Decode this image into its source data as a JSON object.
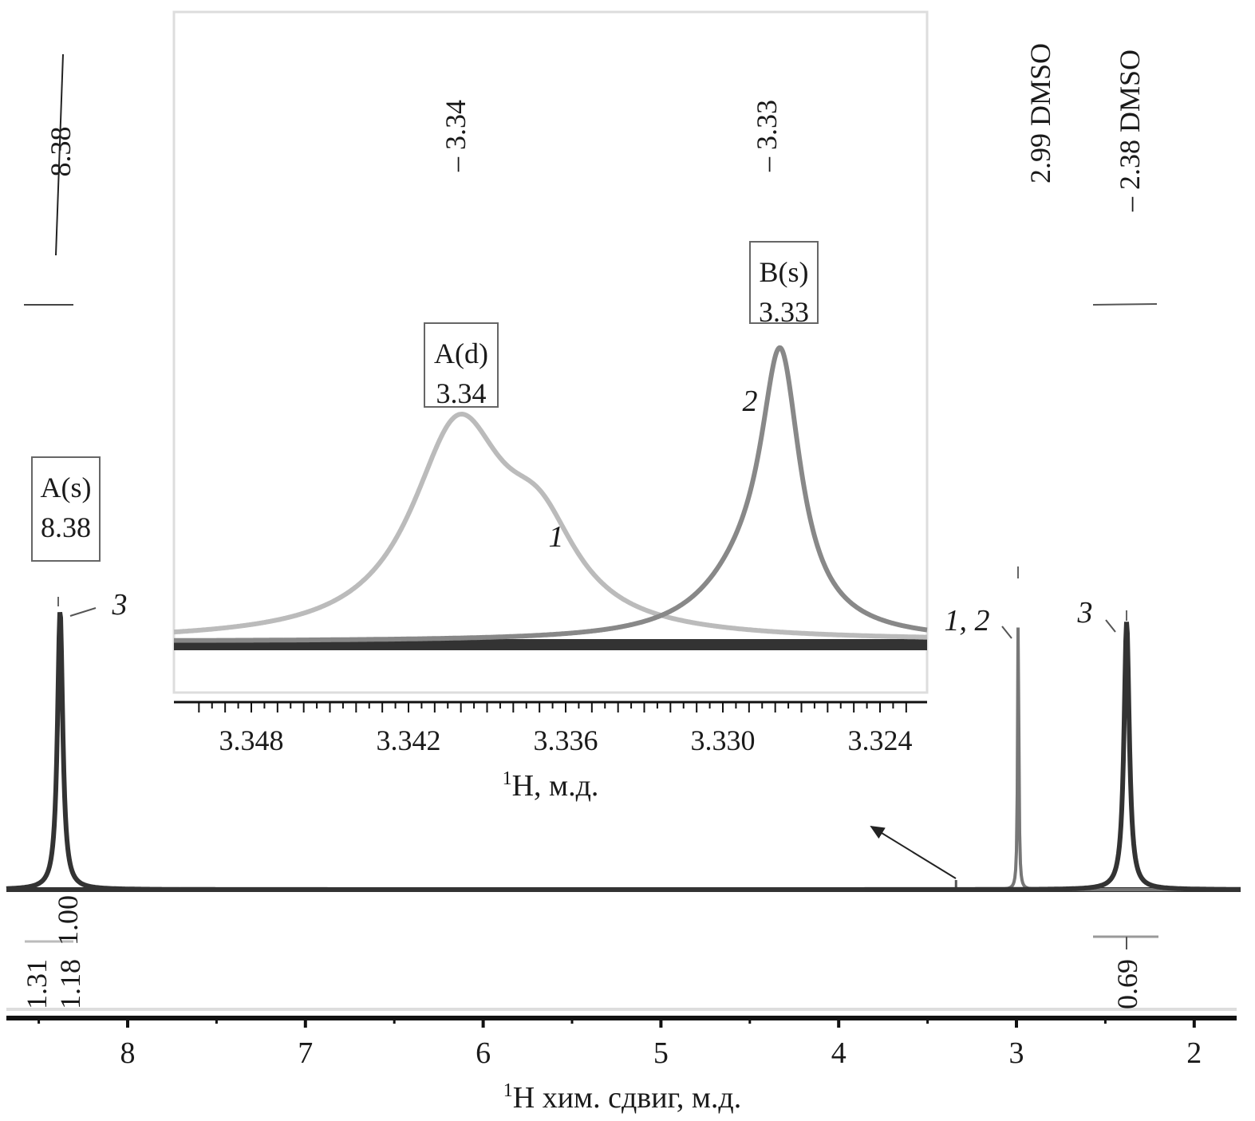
{
  "chart_data": {
    "type": "line",
    "title": "",
    "main": {
      "xlabel_sup": "1",
      "xlabel": "H хим. сдвиг, м.д.",
      "xlim": [
        8.7,
        1.75
      ],
      "xticks": [
        8,
        7,
        6,
        5,
        4,
        3,
        2
      ],
      "peaks": [
        {
          "ppm": 8.38,
          "intensity": 1.0,
          "width": 0.018,
          "color": "#333333"
        },
        {
          "ppm": 3.34,
          "intensity": 0.035,
          "width": 0.004,
          "color": "#555555"
        },
        {
          "ppm": 2.99,
          "intensity": 1.0,
          "width": 0.004,
          "color": "#777777"
        },
        {
          "ppm": 2.38,
          "intensity": 0.96,
          "width": 0.018,
          "color": "#333333"
        }
      ],
      "peak_picks": [
        "8.38",
        "2.99 DMSO",
        "2.38 DMSO"
      ],
      "curve_labels": [
        "3",
        "1, 2",
        "3"
      ],
      "integrals": [
        "1.31",
        "1.18",
        "1.00",
        "0.69"
      ],
      "boxes": [
        {
          "line1": "A(s)",
          "line2": "8.38"
        }
      ]
    },
    "inset": {
      "xlabel_sup": "1",
      "xlabel": "H, м.д.",
      "xlim": [
        3.351,
        3.3222
      ],
      "xticks": [
        "3.348",
        "3.342",
        "3.336",
        "3.330",
        "3.324"
      ],
      "series": [
        {
          "name": "1",
          "color": "#bbbbbb",
          "components": [
            {
              "ppm": 3.3401,
              "intensity": 0.82,
              "width": 0.0022
            },
            {
              "ppm": 3.337,
              "intensity": 0.33,
              "width": 0.0018
            }
          ]
        },
        {
          "name": "2",
          "color": "#888888",
          "components": [
            {
              "ppm": 3.3278,
              "intensity": 1.0,
              "width": 0.0009
            },
            {
              "ppm": 3.329,
              "intensity": 0.22,
              "width": 0.0022
            }
          ]
        }
      ],
      "peak_picks": [
        "3.34",
        "3.33"
      ],
      "boxes": [
        {
          "line1": "A(d)",
          "line2": "3.34"
        },
        {
          "line1": "B(s)",
          "line2": "3.33"
        }
      ]
    }
  }
}
